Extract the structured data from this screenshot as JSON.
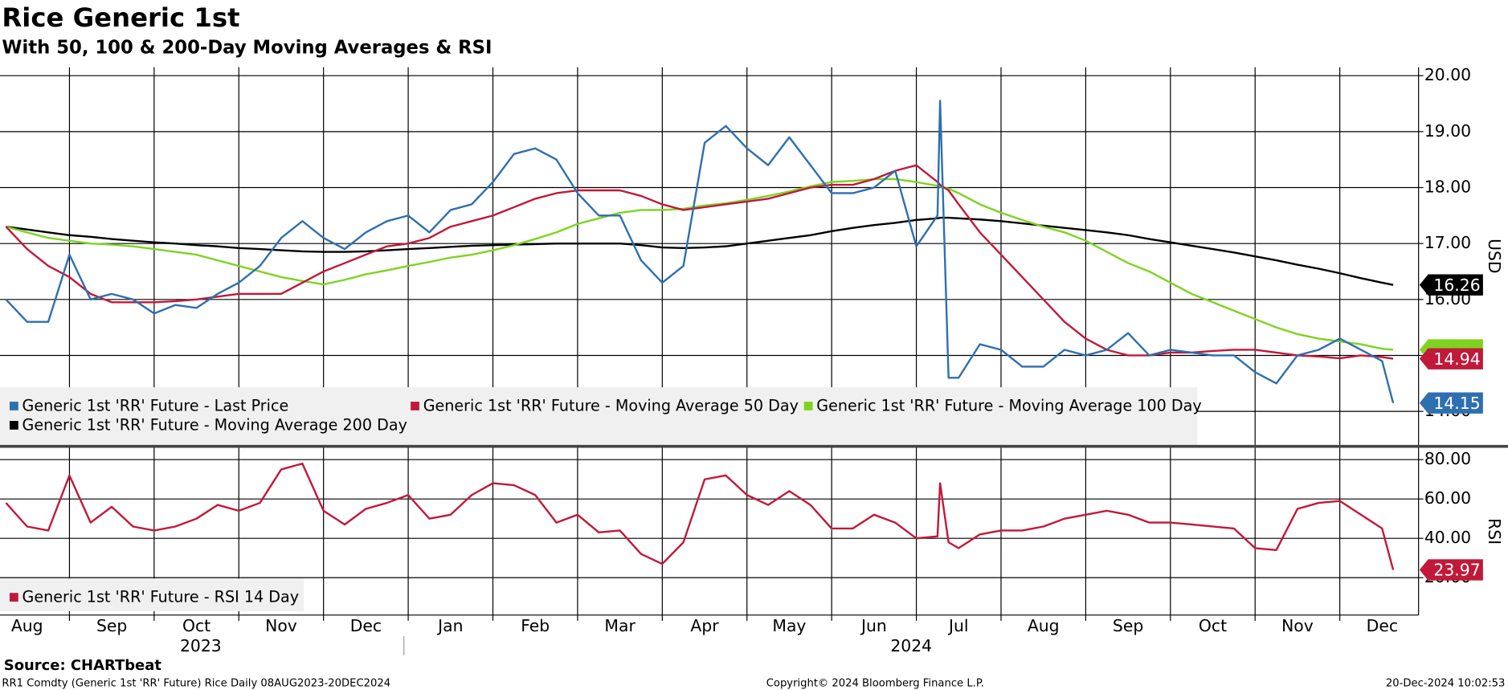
{
  "chart_data": [
    {
      "type": "line",
      "title": "Rice Generic 1st",
      "subtitle": "With 50, 100 & 200-Day Moving Averages & RSI",
      "ylabel": "USD",
      "x": [
        0.25,
        0.5,
        0.75,
        1,
        1.25,
        1.5,
        1.75,
        2,
        2.25,
        2.5,
        2.75,
        3,
        3.25,
        3.5,
        3.75,
        4,
        4.25,
        4.5,
        4.75,
        5,
        5.25,
        5.5,
        5.75,
        6,
        6.25,
        6.5,
        6.75,
        7,
        7.25,
        7.5,
        7.75,
        8,
        8.25,
        8.5,
        8.75,
        9,
        9.25,
        9.5,
        9.75,
        10,
        10.25,
        10.5,
        10.75,
        11,
        11.25,
        11.28,
        11.38,
        11.5,
        11.75,
        12,
        12.25,
        12.5,
        12.75,
        13,
        13.25,
        13.5,
        13.75,
        14,
        14.25,
        14.5,
        14.75,
        15,
        15.25,
        15.5,
        15.75,
        16,
        16.25,
        16.5,
        16.63
      ],
      "xlim": [
        0.18,
        16.93
      ],
      "ylim": [
        13.4,
        20.15
      ],
      "yticks": [
        {
          "value": 20,
          "label": "20.00"
        },
        {
          "value": 19,
          "label": "19.00"
        },
        {
          "value": 18,
          "label": "18.00"
        },
        {
          "value": 17,
          "label": "17.00"
        },
        {
          "value": 16,
          "label": "16.00"
        },
        {
          "value": 15,
          "label": "15.00"
        },
        {
          "value": 14,
          "label": "14.00"
        }
      ],
      "grid": true,
      "legend": "bottom-left",
      "series": [
        {
          "name": "Generic 1st 'RR' Future - Moving Average 200 Day",
          "color": "#000000",
          "last_label": "16.26",
          "values": [
            17.3,
            17.25,
            17.2,
            17.15,
            17.12,
            17.08,
            17.05,
            17.02,
            17.0,
            16.97,
            16.95,
            16.92,
            16.9,
            16.88,
            16.86,
            16.85,
            16.85,
            16.86,
            16.88,
            16.9,
            16.92,
            16.94,
            16.96,
            16.97,
            16.98,
            16.99,
            17.0,
            17.0,
            17.0,
            17.0,
            16.97,
            16.93,
            16.92,
            16.93,
            16.95,
            17.0,
            17.05,
            17.1,
            17.15,
            17.22,
            17.28,
            17.33,
            17.37,
            17.42,
            17.45,
            17.46,
            17.46,
            17.45,
            17.43,
            17.4,
            17.36,
            17.32,
            17.28,
            17.24,
            17.2,
            17.15,
            17.08,
            17.02,
            16.96,
            16.9,
            16.84,
            16.77,
            16.7,
            16.62,
            16.55,
            16.47,
            16.38,
            16.3,
            16.26
          ]
        },
        {
          "name": "Generic 1st 'RR' Future - Moving Average 100 Day",
          "color": "#7ed321",
          "values": [
            17.3,
            17.2,
            17.1,
            17.05,
            17.0,
            16.98,
            16.95,
            16.9,
            16.85,
            16.8,
            16.7,
            16.6,
            16.5,
            16.4,
            16.33,
            16.27,
            16.35,
            16.45,
            16.52,
            16.6,
            16.67,
            16.75,
            16.8,
            16.88,
            16.97,
            17.08,
            17.2,
            17.35,
            17.45,
            17.55,
            17.6,
            17.6,
            17.62,
            17.68,
            17.72,
            17.78,
            17.85,
            17.93,
            18.02,
            18.1,
            18.12,
            18.15,
            18.15,
            18.1,
            18.03,
            18.02,
            17.98,
            17.9,
            17.7,
            17.55,
            17.42,
            17.3,
            17.2,
            17.05,
            16.85,
            16.65,
            16.5,
            16.3,
            16.1,
            15.95,
            15.8,
            15.65,
            15.5,
            15.38,
            15.3,
            15.25,
            15.2,
            15.12,
            15.1
          ]
        },
        {
          "name": "Generic 1st 'RR' Future - Moving Average 50 Day",
          "color": "#c0193a",
          "last_label": "14.94",
          "values": [
            17.3,
            16.9,
            16.6,
            16.4,
            16.1,
            15.95,
            15.95,
            15.95,
            15.97,
            16.0,
            16.05,
            16.1,
            16.1,
            16.1,
            16.3,
            16.5,
            16.65,
            16.8,
            16.95,
            17.0,
            17.1,
            17.3,
            17.4,
            17.5,
            17.65,
            17.8,
            17.9,
            17.95,
            17.95,
            17.95,
            17.85,
            17.7,
            17.6,
            17.65,
            17.7,
            17.75,
            17.8,
            17.9,
            18.0,
            18.05,
            18.05,
            18.15,
            18.3,
            18.4,
            18.1,
            18.05,
            17.95,
            17.7,
            17.2,
            16.8,
            16.4,
            16.0,
            15.6,
            15.3,
            15.1,
            15.0,
            15.0,
            15.05,
            15.05,
            15.08,
            15.1,
            15.1,
            15.05,
            15.0,
            14.98,
            14.95,
            15.0,
            14.97,
            14.94
          ]
        },
        {
          "name": "Generic 1st 'RR' Future - Last Price",
          "color": "#2e6fb0",
          "last_label": "14.15",
          "values": [
            16.0,
            15.6,
            15.6,
            16.8,
            16.0,
            16.1,
            16.0,
            15.75,
            15.9,
            15.85,
            16.1,
            16.3,
            16.6,
            17.1,
            17.4,
            17.1,
            16.9,
            17.2,
            17.4,
            17.5,
            17.2,
            17.6,
            17.7,
            18.1,
            18.6,
            18.7,
            18.5,
            17.9,
            17.5,
            17.5,
            16.7,
            16.3,
            16.6,
            18.8,
            19.1,
            18.7,
            18.4,
            18.9,
            18.4,
            17.9,
            17.9,
            18.0,
            18.3,
            16.95,
            17.5,
            19.55,
            14.6,
            14.6,
            15.2,
            15.1,
            14.8,
            14.8,
            15.1,
            15.0,
            15.1,
            15.4,
            15.0,
            15.1,
            15.05,
            15.0,
            15.0,
            14.7,
            14.5,
            15.0,
            15.1,
            15.3,
            15.1,
            14.9,
            14.15
          ]
        }
      ]
    },
    {
      "type": "line",
      "ylabel": "RSI",
      "x": [
        0.25,
        0.5,
        0.75,
        1,
        1.25,
        1.5,
        1.75,
        2,
        2.25,
        2.5,
        2.75,
        3,
        3.25,
        3.5,
        3.75,
        4,
        4.25,
        4.5,
        4.75,
        5,
        5.25,
        5.5,
        5.75,
        6,
        6.25,
        6.5,
        6.75,
        7,
        7.25,
        7.5,
        7.75,
        8,
        8.25,
        8.5,
        8.75,
        9,
        9.25,
        9.5,
        9.75,
        10,
        10.25,
        10.5,
        10.75,
        11,
        11.25,
        11.28,
        11.38,
        11.5,
        11.75,
        12,
        12.25,
        12.5,
        12.75,
        13,
        13.25,
        13.5,
        13.75,
        14,
        14.25,
        14.5,
        14.75,
        15,
        15.25,
        15.5,
        15.75,
        16,
        16.25,
        16.5,
        16.63
      ],
      "xlim": [
        0.18,
        16.93
      ],
      "ylim": [
        1,
        86
      ],
      "yticks": [
        {
          "value": 80,
          "label": "80.00"
        },
        {
          "value": 60,
          "label": "60.00"
        },
        {
          "value": 40,
          "label": "40.00"
        },
        {
          "value": 20,
          "label": "20.00"
        }
      ],
      "grid": true,
      "legend": "bottom-left",
      "xgrid": [
        1,
        2,
        3,
        4,
        5,
        6,
        7,
        8,
        9,
        10,
        11,
        12,
        13,
        14,
        15,
        16
      ],
      "xticks": [
        {
          "value": 0.5,
          "label": "Aug"
        },
        {
          "value": 1.5,
          "label": "Sep"
        },
        {
          "value": 2.5,
          "label": "Oct"
        },
        {
          "value": 3.5,
          "label": "Nov"
        },
        {
          "value": 4.5,
          "label": "Dec"
        },
        {
          "value": 5.5,
          "label": "Jan"
        },
        {
          "value": 6.5,
          "label": "Feb"
        },
        {
          "value": 7.5,
          "label": "Mar"
        },
        {
          "value": 8.5,
          "label": "Apr"
        },
        {
          "value": 9.5,
          "label": "May"
        },
        {
          "value": 10.5,
          "label": "Jun"
        },
        {
          "value": 11.5,
          "label": "Jul"
        },
        {
          "value": 12.5,
          "label": "Aug"
        },
        {
          "value": 13.5,
          "label": "Sep"
        },
        {
          "value": 14.5,
          "label": "Oct"
        },
        {
          "value": 15.5,
          "label": "Nov"
        },
        {
          "value": 16.5,
          "label": "Dec"
        }
      ],
      "year_labels": [
        {
          "value": 2.55,
          "label": "2023"
        },
        {
          "value": 10.94,
          "label": "2024"
        }
      ],
      "series": [
        {
          "name": "Generic 1st 'RR' Future - RSI 14 Day",
          "color": "#c0193a",
          "last_label": "23.97",
          "values": [
            58,
            46,
            44,
            72,
            48,
            56,
            46,
            44,
            46,
            50,
            57,
            54,
            58,
            75,
            78,
            54,
            47,
            55,
            58,
            62,
            50,
            52,
            62,
            68,
            67,
            62,
            48,
            52,
            43,
            44,
            32,
            27,
            38,
            70,
            72,
            62,
            57,
            64,
            57,
            45,
            45,
            52,
            48,
            40,
            41,
            68,
            38,
            35,
            42,
            44,
            44,
            46,
            50,
            52,
            54,
            52,
            48,
            48,
            47,
            46,
            45,
            35,
            34,
            55,
            58,
            59,
            52,
            45,
            23.97
          ]
        }
      ]
    }
  ],
  "footer": {
    "source": "Source: CHARTbeat",
    "info": "RR1 Comdty (Generic 1st 'RR' Future) Rice  Daily 08AUG2023-20DEC2024",
    "copyright": "Copyright© 2024 Bloomberg Finance L.P.",
    "timestamp": "20-Dec-2024 10:02:53"
  }
}
